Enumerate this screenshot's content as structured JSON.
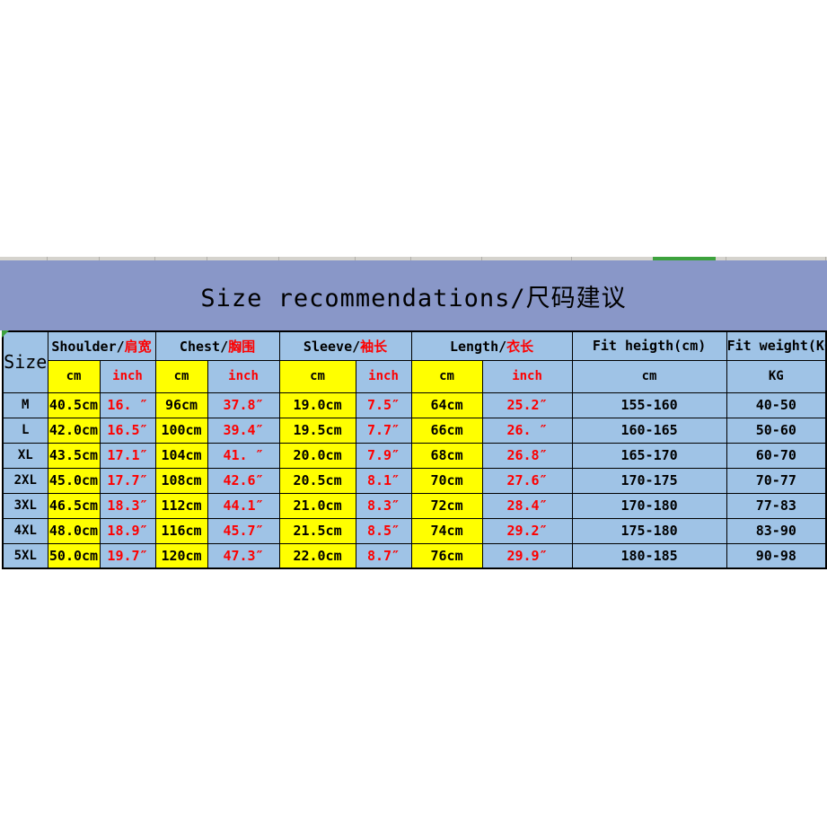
{
  "title": {
    "text": "Size recommendations/尺码建议"
  },
  "colors": {
    "title_band": "#8997c8",
    "cell_blue": "#9fc3e6",
    "cell_yellow": "#ffff00",
    "red_text": "#fe0000",
    "green_accent": "#3da23d",
    "strip_gray": "#d5d3cd"
  },
  "decor": {
    "green_bar": "green-accent-bar",
    "corner_triangle": "green-corner-marker"
  },
  "chart_data": {
    "type": "table",
    "title": "Size recommendations/尺码建议",
    "size_column_label": "Size",
    "header_groups": [
      {
        "label_en": "Shoulder/",
        "label_zh": "肩宽",
        "colspan": 2
      },
      {
        "label_en": "Chest/",
        "label_zh": "胸围",
        "colspan": 2
      },
      {
        "label_en": "Sleeve/",
        "label_zh": "袖长",
        "colspan": 2
      },
      {
        "label_en": "Length/",
        "label_zh": "衣长",
        "colspan": 2
      },
      {
        "label_en": "Fit heigth(cm)",
        "label_zh": "",
        "colspan": 1
      },
      {
        "label_en": "Fit weight(KG)",
        "label_zh": "",
        "colspan": 1
      }
    ],
    "sub_headers": [
      "cm",
      "inch",
      "cm",
      "inch",
      "cm",
      "inch",
      "cm",
      "inch",
      "cm",
      "KG"
    ],
    "column_styles": [
      "yellow-black",
      "blue-red",
      "yellow-black",
      "blue-red",
      "yellow-black",
      "blue-red",
      "yellow-black",
      "blue-red",
      "blue-black",
      "blue-black"
    ],
    "rows": [
      {
        "size": "M",
        "values": [
          "40.5cm",
          "16. ″",
          "96cm",
          "37.8″",
          "19.0cm",
          "7.5″",
          "64cm",
          "25.2″",
          "155-160",
          "40-50"
        ]
      },
      {
        "size": "L",
        "values": [
          "42.0cm",
          "16.5″",
          "100cm",
          "39.4″",
          "19.5cm",
          "7.7″",
          "66cm",
          "26. ″",
          "160-165",
          "50-60"
        ]
      },
      {
        "size": "XL",
        "values": [
          "43.5cm",
          "17.1″",
          "104cm",
          "41. ″",
          "20.0cm",
          "7.9″",
          "68cm",
          "26.8″",
          "165-170",
          "60-70"
        ]
      },
      {
        "size": "2XL",
        "values": [
          "45.0cm",
          "17.7″",
          "108cm",
          "42.6″",
          "20.5cm",
          "8.1″",
          "70cm",
          "27.6″",
          "170-175",
          "70-77"
        ]
      },
      {
        "size": "3XL",
        "values": [
          "46.5cm",
          "18.3″",
          "112cm",
          "44.1″",
          "21.0cm",
          "8.3″",
          "72cm",
          "28.4″",
          "170-180",
          "77-83"
        ]
      },
      {
        "size": "4XL",
        "values": [
          "48.0cm",
          "18.9″",
          "116cm",
          "45.7″",
          "21.5cm",
          "8.5″",
          "74cm",
          "29.2″",
          "175-180",
          "83-90"
        ]
      },
      {
        "size": "5XL",
        "values": [
          "50.0cm",
          "19.7″",
          "120cm",
          "47.3″",
          "22.0cm",
          "8.7″",
          "76cm",
          "29.9″",
          "180-185",
          "90-98"
        ]
      }
    ]
  }
}
